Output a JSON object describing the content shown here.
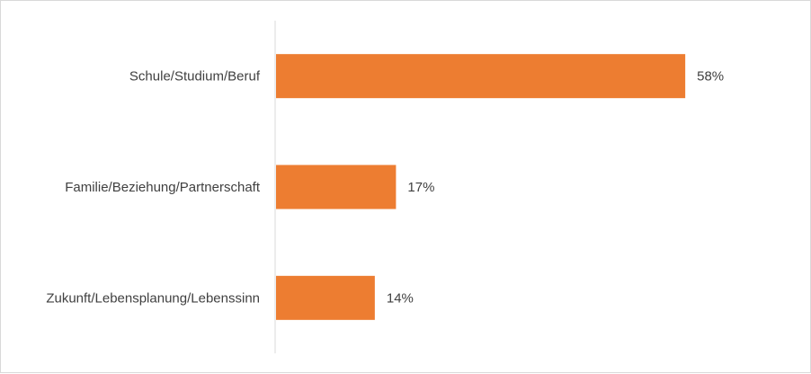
{
  "chart_data": {
    "type": "bar",
    "orientation": "horizontal",
    "categories": [
      "Schule/Studium/Beruf",
      "Familie/Beziehung/Partnerschaft",
      "Zukunft/Lebensplanung/Lebenssinn"
    ],
    "values": [
      58,
      17,
      14
    ],
    "value_labels": [
      "58%",
      "17%",
      "14%"
    ],
    "xlim": [
      0,
      72
    ],
    "bar_color": "#ED7D31",
    "axis_color": "#D9D9D9",
    "text_color": "#404040",
    "grid": false,
    "legend": "none"
  }
}
